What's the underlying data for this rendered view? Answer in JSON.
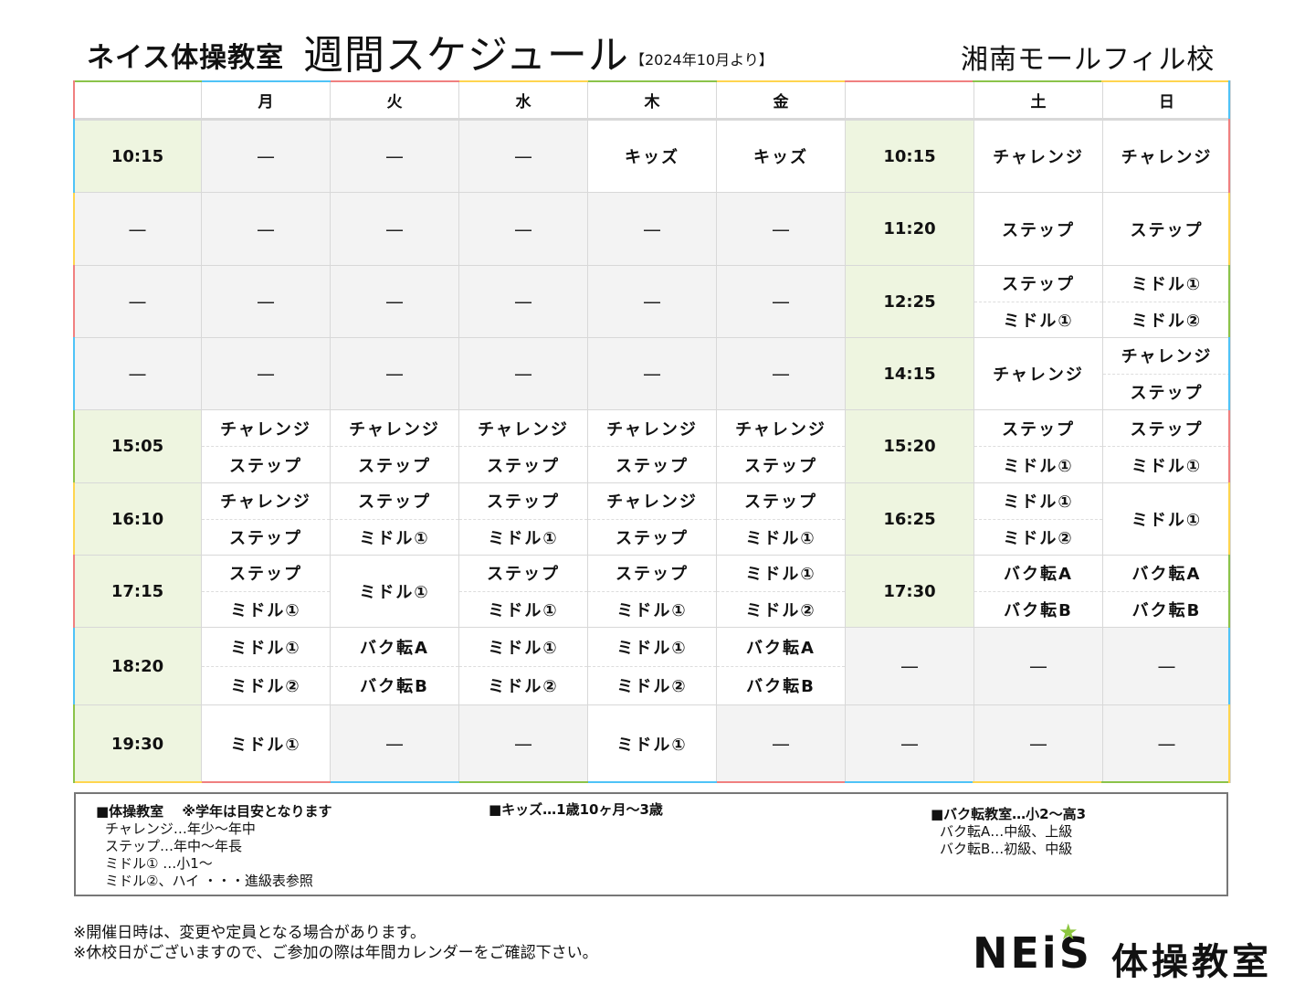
{
  "header": {
    "brand": "ネイス体操教室",
    "title": "週間スケジュール",
    "date_note": "【2024年10月より】",
    "school": "湘南モールフィル校"
  },
  "table": {
    "weekday_headers": [
      "",
      "月",
      "火",
      "水",
      "木",
      "金"
    ],
    "weekend_headers": [
      "",
      "土",
      "日"
    ],
    "rows": [
      {
        "wd_time": "10:15",
        "wd": [
          [
            "—"
          ],
          [
            "—"
          ],
          [
            "—"
          ],
          [
            "キッズ"
          ],
          [
            "キッズ"
          ]
        ],
        "we_time": "10:15",
        "we": [
          [
            "チャレンジ"
          ],
          [
            "チャレンジ"
          ]
        ]
      },
      {
        "wd_time": "—",
        "wd": [
          [
            "—"
          ],
          [
            "—"
          ],
          [
            "—"
          ],
          [
            "—"
          ],
          [
            "—"
          ]
        ],
        "we_time": "11:20",
        "we": [
          [
            "ステップ"
          ],
          [
            "ステップ"
          ]
        ]
      },
      {
        "wd_time": "—",
        "wd": [
          [
            "—"
          ],
          [
            "—"
          ],
          [
            "—"
          ],
          [
            "—"
          ],
          [
            "—"
          ]
        ],
        "we_time": "12:25",
        "we": [
          [
            "ステップ",
            "ミドル①"
          ],
          [
            "ミドル①",
            "ミドル②"
          ]
        ]
      },
      {
        "wd_time": "—",
        "wd": [
          [
            "—"
          ],
          [
            "—"
          ],
          [
            "—"
          ],
          [
            "—"
          ],
          [
            "—"
          ]
        ],
        "we_time": "14:15",
        "we": [
          [
            "チャレンジ"
          ],
          [
            "チャレンジ",
            "ステップ"
          ]
        ]
      },
      {
        "wd_time": "15:05",
        "wd": [
          [
            "チャレンジ",
            "ステップ"
          ],
          [
            "チャレンジ",
            "ステップ"
          ],
          [
            "チャレンジ",
            "ステップ"
          ],
          [
            "チャレンジ",
            "ステップ"
          ],
          [
            "チャレンジ",
            "ステップ"
          ]
        ],
        "we_time": "15:20",
        "we": [
          [
            "ステップ",
            "ミドル①"
          ],
          [
            "ステップ",
            "ミドル①"
          ]
        ]
      },
      {
        "wd_time": "16:10",
        "wd": [
          [
            "チャレンジ",
            "ステップ"
          ],
          [
            "ステップ",
            "ミドル①"
          ],
          [
            "ステップ",
            "ミドル①"
          ],
          [
            "チャレンジ",
            "ステップ"
          ],
          [
            "ステップ",
            "ミドル①"
          ]
        ],
        "we_time": "16:25",
        "we": [
          [
            "ミドル①",
            "ミドル②"
          ],
          [
            "ミドル①"
          ]
        ]
      },
      {
        "wd_time": "17:15",
        "wd": [
          [
            "ステップ",
            "ミドル①"
          ],
          [
            "ミドル①"
          ],
          [
            "ステップ",
            "ミドル①"
          ],
          [
            "ステップ",
            "ミドル①"
          ],
          [
            "ミドル①",
            "ミドル②"
          ]
        ],
        "we_time": "17:30",
        "we": [
          [
            "バク転A",
            "バク転B"
          ],
          [
            "バク転A",
            "バク転B"
          ]
        ]
      },
      {
        "wd_time": "18:20",
        "wd": [
          [
            "ミドル①",
            "ミドル②"
          ],
          [
            "バク転A",
            "バク転B"
          ],
          [
            "ミドル①",
            "ミドル②"
          ],
          [
            "ミドル①",
            "ミドル②"
          ],
          [
            "バク転A",
            "バク転B"
          ]
        ],
        "we_time": "—",
        "we": [
          [
            "—"
          ],
          [
            "—"
          ]
        ]
      },
      {
        "wd_time": "19:30",
        "wd": [
          [
            "ミドル①"
          ],
          [
            "—"
          ],
          [
            "—"
          ],
          [
            "ミドル①"
          ],
          [
            "—"
          ]
        ],
        "we_time": "—",
        "we": [
          [
            "—"
          ],
          [
            "—"
          ]
        ]
      }
    ]
  },
  "legend": {
    "gym": {
      "head": "■体操教室　 ※学年は目安となります",
      "items": [
        "チャレンジ…年少～年中",
        "ステップ…年中～年長",
        "ミドル① …小1～",
        "ミドル②、ハイ ・・・進級表参照"
      ]
    },
    "kids": {
      "head": "■キッズ…1歳10ヶ月～3歳"
    },
    "backflip": {
      "head": "■バク転教室…小2～高3",
      "items": [
        "バク転A…中級、上級",
        "バク転B…初級、中級"
      ]
    }
  },
  "footer": {
    "notes": [
      "※開催日時は、変更や定員となる場合があります。",
      "※休校日がございますので、ご参加の際は年間カレンダーをご確認下さい。"
    ],
    "logo_word": "NEiS",
    "logo_sub": "体操教室"
  },
  "colors": {
    "time_cell": "#eef5e0",
    "empty_cell": "#f3f3f3",
    "frame_red": "#f08080",
    "frame_blue": "#4fc3f7",
    "frame_yellow": "#ffd54f",
    "frame_green": "#8bc34a",
    "logo_star": "#8cc63f"
  }
}
